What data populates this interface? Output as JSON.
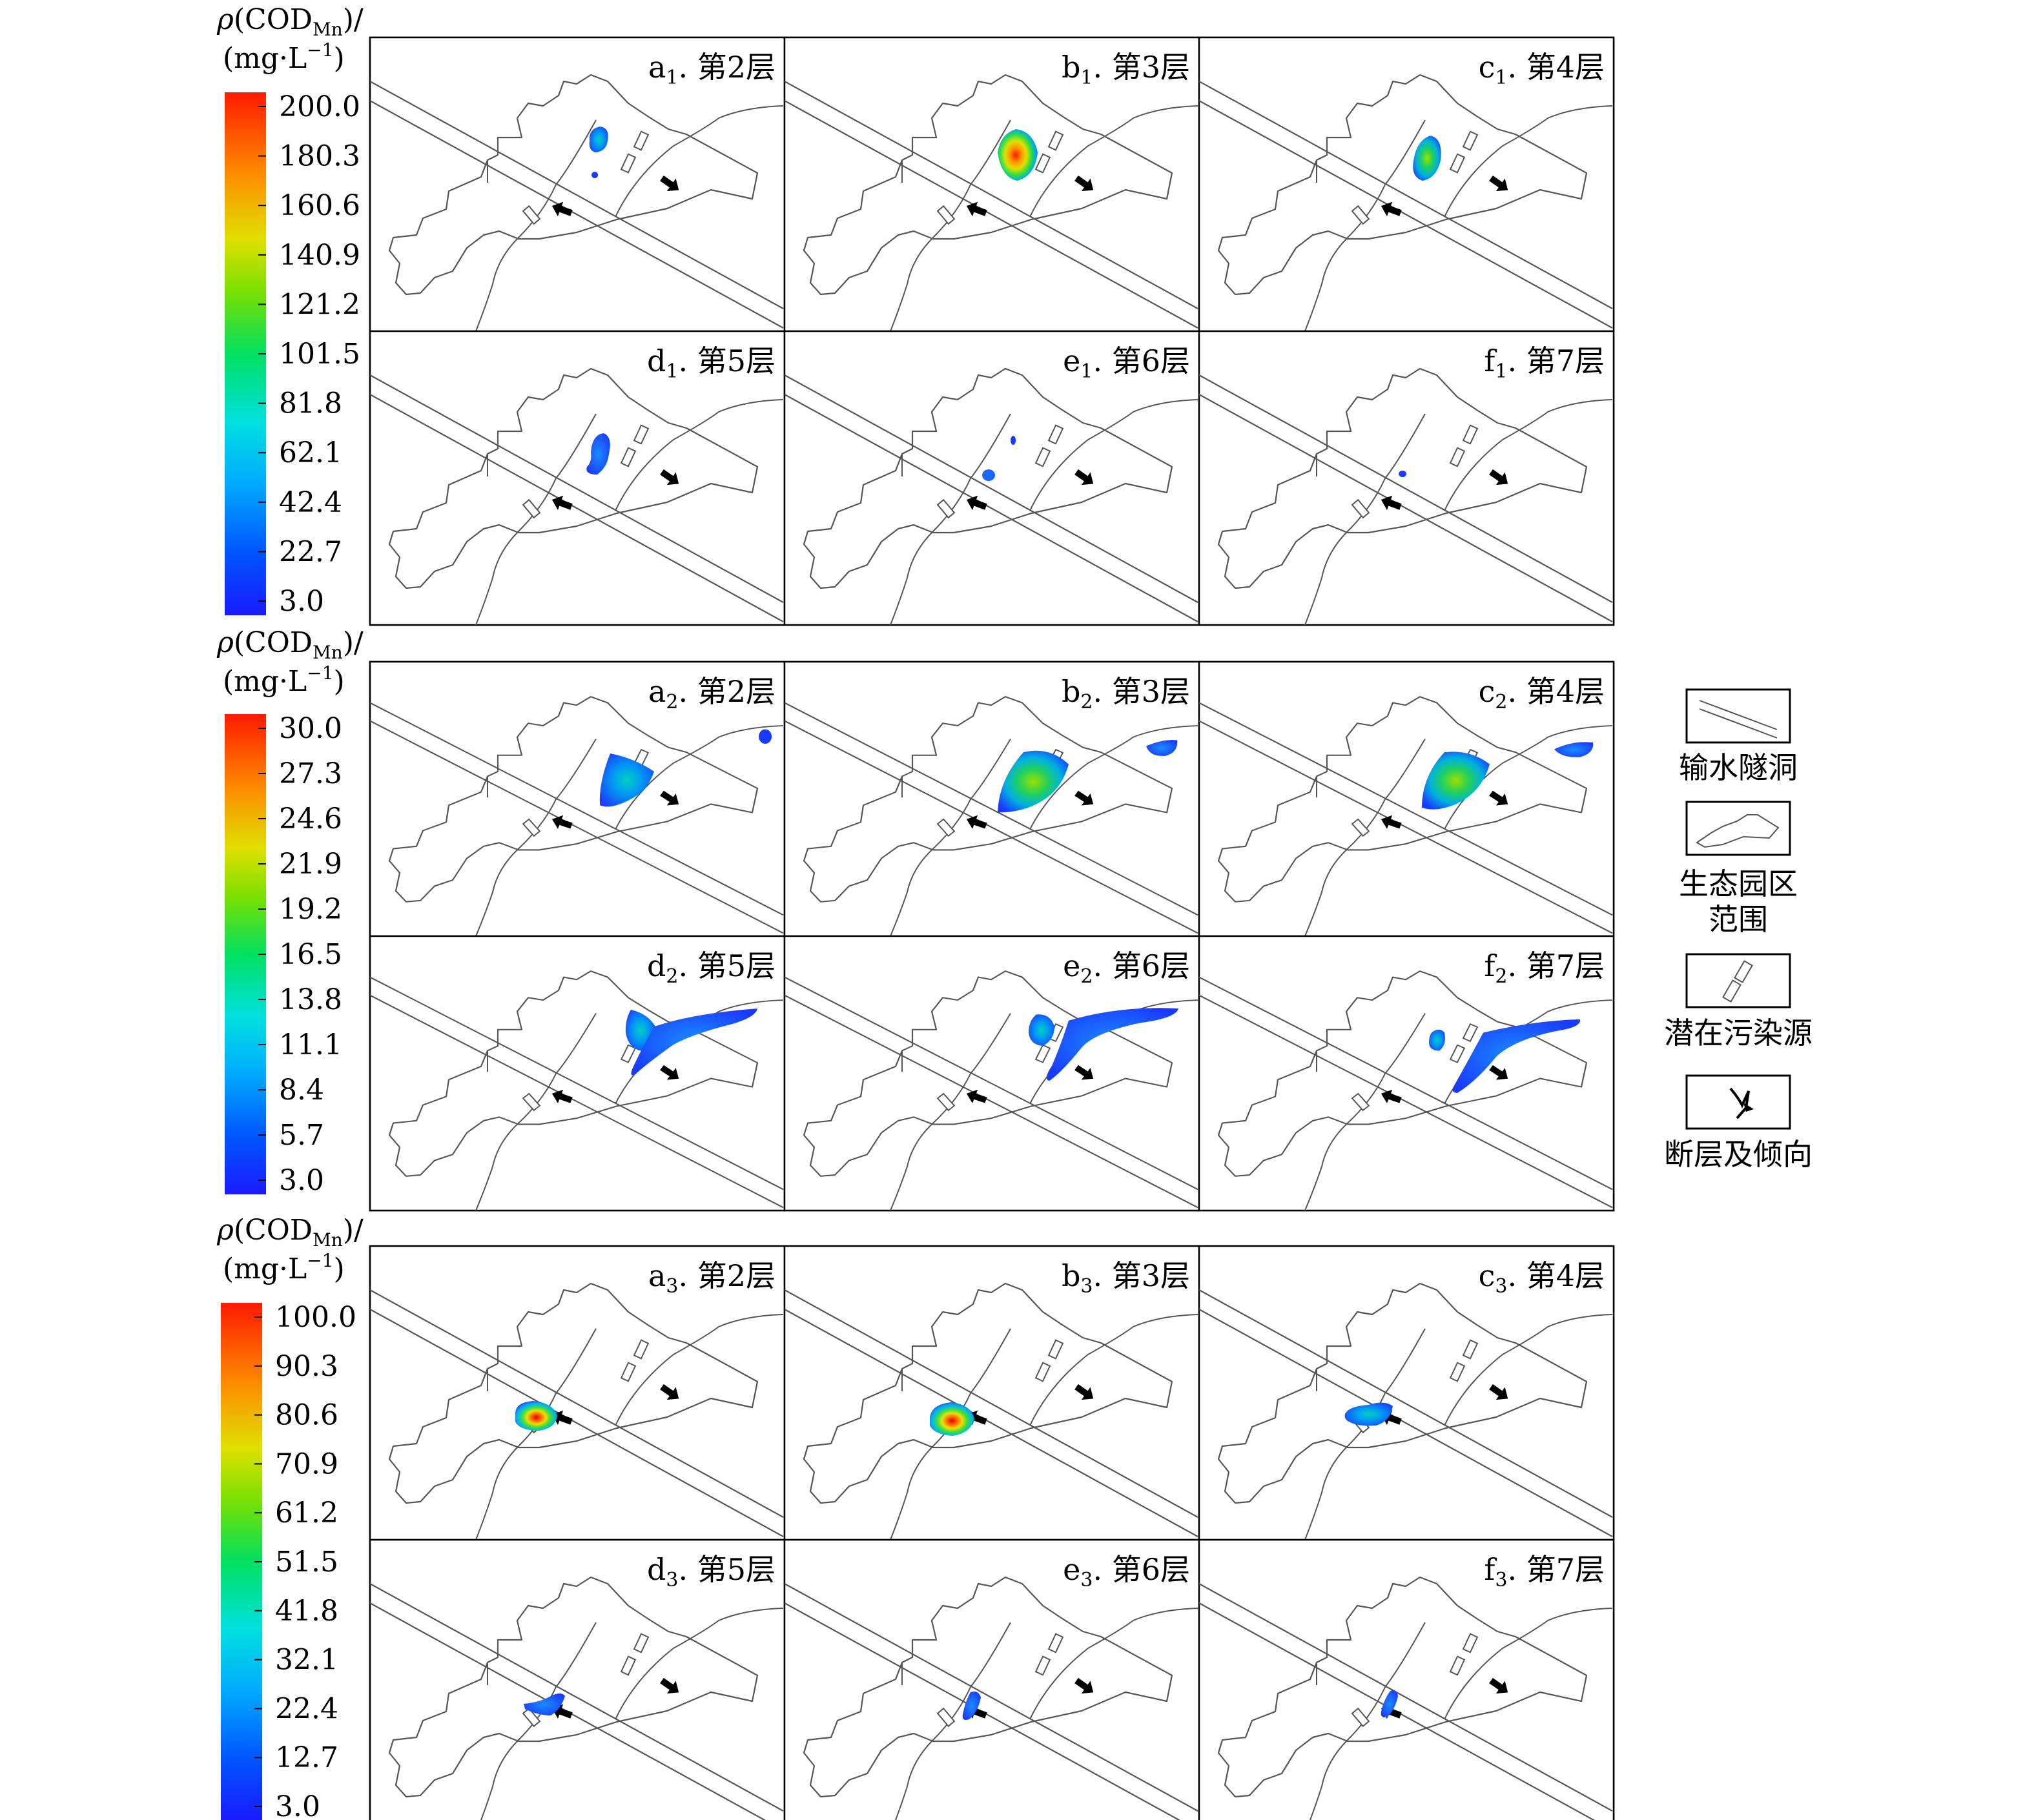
{
  "colorbar_title": {
    "rho": "ρ",
    "open": "(COD",
    "sub": "Mn",
    "close": ")/",
    "unit": "(mg·L",
    "unit_exp": "−1",
    "unit_close": ")"
  },
  "groups": [
    {
      "id": "1",
      "colorbar_ticks": [
        "200.0",
        "180.3",
        "160.6",
        "140.9",
        "121.2",
        "101.5",
        "81.8",
        "62.1",
        "42.4",
        "22.7",
        "3.0"
      ],
      "panels": [
        {
          "letter": "a",
          "sub": "1",
          "sep": ". ",
          "layer": "第2层"
        },
        {
          "letter": "b",
          "sub": "1",
          "sep": ". ",
          "layer": "第3层"
        },
        {
          "letter": "c",
          "sub": "1",
          "sep": ". ",
          "layer": "第4层"
        },
        {
          "letter": "d",
          "sub": "1",
          "sep": ". ",
          "layer": "第5层"
        },
        {
          "letter": "e",
          "sub": "1",
          "sep": ". ",
          "layer": "第6层"
        },
        {
          "letter": "f",
          "sub": "1",
          "sep": ". ",
          "layer": "第7层"
        }
      ]
    },
    {
      "id": "2",
      "colorbar_ticks": [
        "30.0",
        "27.3",
        "24.6",
        "21.9",
        "19.2",
        "16.5",
        "13.8",
        "11.1",
        "8.4",
        "5.7",
        "3.0"
      ],
      "panels": [
        {
          "letter": "a",
          "sub": "2",
          "sep": ". ",
          "layer": "第2层"
        },
        {
          "letter": "b",
          "sub": "2",
          "sep": ". ",
          "layer": "第3层"
        },
        {
          "letter": "c",
          "sub": "2",
          "sep": ". ",
          "layer": "第4层"
        },
        {
          "letter": "d",
          "sub": "2",
          "sep": ". ",
          "layer": "第5层"
        },
        {
          "letter": "e",
          "sub": "2",
          "sep": ". ",
          "layer": "第6层"
        },
        {
          "letter": "f",
          "sub": "2",
          "sep": ". ",
          "layer": "第7层"
        }
      ]
    },
    {
      "id": "3",
      "colorbar_ticks": [
        "100.0",
        "90.3",
        "80.6",
        "70.9",
        "61.2",
        "51.5",
        "41.8",
        "32.1",
        "22.4",
        "12.7",
        "3.0"
      ],
      "panels": [
        {
          "letter": "a",
          "sub": "3",
          "sep": ". ",
          "layer": "第2层"
        },
        {
          "letter": "b",
          "sub": "3",
          "sep": ". ",
          "layer": "第3层"
        },
        {
          "letter": "c",
          "sub": "3",
          "sep": ". ",
          "layer": "第4层"
        },
        {
          "letter": "d",
          "sub": "3",
          "sep": ". ",
          "layer": "第5层"
        },
        {
          "letter": "e",
          "sub": "3",
          "sep": ". ",
          "layer": "第6层"
        },
        {
          "letter": "f",
          "sub": "3",
          "sep": ". ",
          "layer": "第7层"
        }
      ]
    }
  ],
  "legend": {
    "tunnel": "输水隧洞",
    "park_line1": "生态园区",
    "park_line2": "范围",
    "source": "潜在污染源",
    "fault": "断层及倾向"
  }
}
